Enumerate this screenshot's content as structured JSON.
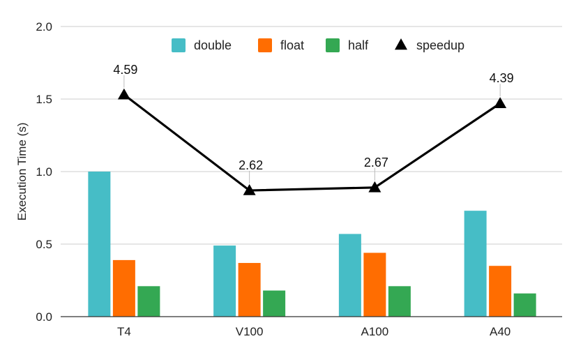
{
  "chart_data": {
    "type": "bar",
    "categories": [
      "T4",
      "V100",
      "A100",
      "A40"
    ],
    "ylabel": "Execution Time (s)",
    "ylim": [
      0,
      2.0
    ],
    "yticks": [
      "0.0",
      "0.5",
      "1.0",
      "1.5",
      "2.0"
    ],
    "ytick_values": [
      0,
      0.5,
      1.0,
      1.5,
      2.0
    ],
    "grid": true,
    "legend_position": "top",
    "series": [
      {
        "name": "double",
        "type": "bar",
        "color": "#46bdc6",
        "values": [
          1.0,
          0.49,
          0.57,
          0.73
        ]
      },
      {
        "name": "float",
        "type": "bar",
        "color": "#ff6d01",
        "values": [
          0.39,
          0.37,
          0.44,
          0.35
        ]
      },
      {
        "name": "half",
        "type": "bar",
        "color": "#34a853",
        "values": [
          0.21,
          0.18,
          0.21,
          0.16
        ]
      },
      {
        "name": "speedup",
        "type": "line",
        "marker": "triangle",
        "color": "#000000",
        "values": [
          4.59,
          2.62,
          2.67,
          4.39
        ],
        "plot_values": [
          1.53,
          0.87,
          0.89,
          1.47
        ],
        "labels": [
          "4.59",
          "2.62",
          "2.67",
          "4.39"
        ]
      }
    ]
  }
}
